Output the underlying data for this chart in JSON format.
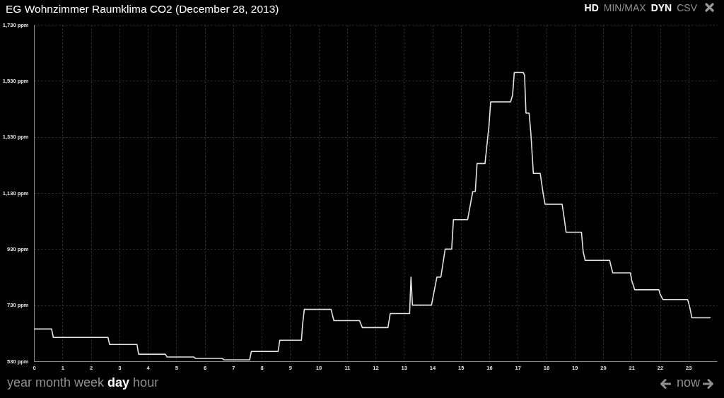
{
  "chart_data": {
    "type": "line",
    "title": "EG Wohnzimmer Raumklima CO2 (December 28, 2013)",
    "x": [
      0,
      0.62,
      0.68,
      2.6,
      2.66,
      3.62,
      3.68,
      4.62,
      4.68,
      5.62,
      5.68,
      6.62,
      6.68,
      7.58,
      7.64,
      8.58,
      8.64,
      9.4,
      9.44,
      9.5,
      10.44,
      10.54,
      11.44,
      11.54,
      12.44,
      12.52,
      13.2,
      13.25,
      13.3,
      13.97,
      14.16,
      14.3,
      14.45,
      14.68,
      14.74,
      15.24,
      15.42,
      15.51,
      15.57,
      15.85,
      15.99,
      16.05,
      16.75,
      16.82,
      16.88,
      17.19,
      17.24,
      17.29,
      17.4,
      17.46,
      17.55,
      17.79,
      17.89,
      17.96,
      18.56,
      18.64,
      18.7,
      19.24,
      19.3,
      19.37,
      20.23,
      20.3,
      20.34,
      20.96,
      21.0,
      21.11,
      21.96,
      22.0,
      22.1,
      22.97,
      23.04,
      23.12,
      23.76
    ],
    "values": [
      645,
      645,
      615,
      615,
      590,
      590,
      555,
      555,
      545,
      545,
      540,
      540,
      535,
      535,
      565,
      565,
      605,
      605,
      660,
      715,
      715,
      675,
      675,
      650,
      650,
      700,
      700,
      830,
      730,
      730,
      830,
      830,
      930,
      930,
      1035,
      1035,
      1135,
      1135,
      1235,
      1235,
      1370,
      1455,
      1455,
      1480,
      1560,
      1560,
      1550,
      1415,
      1415,
      1345,
      1200,
      1200,
      1130,
      1090,
      1090,
      1035,
      990,
      990,
      920,
      890,
      890,
      860,
      845,
      845,
      820,
      785,
      785,
      770,
      750,
      750,
      725,
      685,
      685
    ],
    "color": "#e2e2e2",
    "xlim": [
      0,
      24
    ],
    "xticks": [
      0,
      1,
      2,
      3,
      4,
      5,
      6,
      7,
      8,
      9,
      10,
      11,
      12,
      13,
      14,
      15,
      16,
      17,
      18,
      19,
      20,
      21,
      22,
      23
    ],
    "ylim": [
      530,
      1730
    ],
    "yticks": [
      {
        "value": 530,
        "label": "530 ppm"
      },
      {
        "value": 730,
        "label": "730 ppm"
      },
      {
        "value": 930,
        "label": "930 ppm"
      },
      {
        "value": 1130,
        "label": "1,130 ppm"
      },
      {
        "value": 1330,
        "label": "1,330 ppm"
      },
      {
        "value": 1530,
        "label": "1,530 ppm"
      },
      {
        "value": 1730,
        "label": "1,730 ppm"
      }
    ],
    "grid": true,
    "annotations": [
      "HD",
      "MIN/MAX",
      "DYN",
      "CSV",
      "year",
      "month",
      "week",
      "day",
      "hour",
      "now"
    ]
  }
}
